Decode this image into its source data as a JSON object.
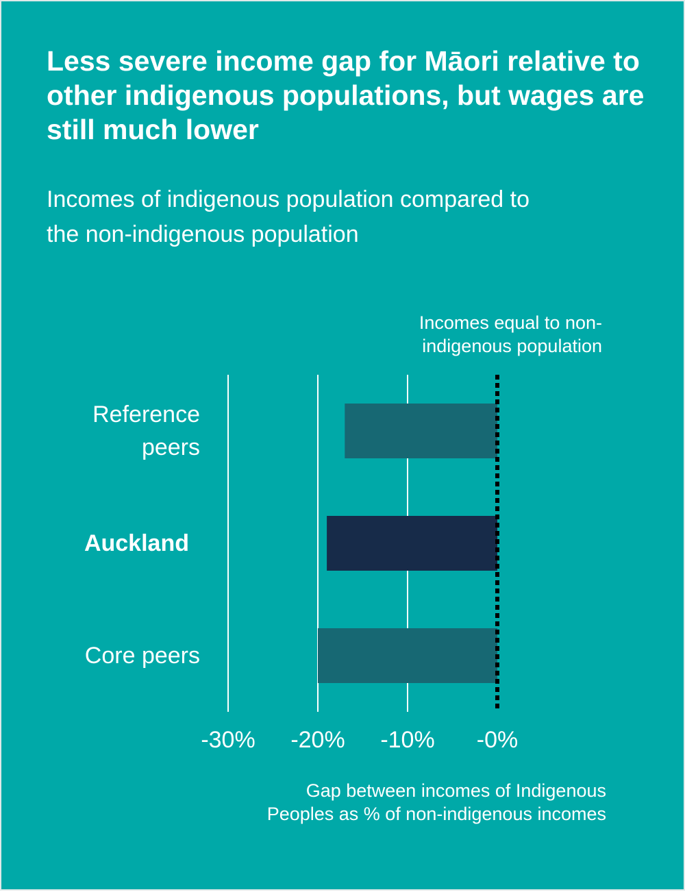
{
  "chart_data": {
    "type": "bar",
    "orientation": "horizontal",
    "title": "Less severe income gap for Māori relative to other indigenous populations, but wages are still much lower",
    "subtitle": "Incomes of indigenous population compared to the non-indigenous population",
    "categories": [
      "Reference peers",
      "Auckland",
      "Core peers"
    ],
    "category_weights": [
      "normal",
      "bold",
      "normal"
    ],
    "values": [
      -17,
      -19,
      -20
    ],
    "colors": [
      "#176873",
      "#172b49",
      "#176873"
    ],
    "xlim": [
      -30,
      0
    ],
    "xticks": [
      {
        "value": -30,
        "label": "-30%"
      },
      {
        "value": -20,
        "label": "-20%"
      },
      {
        "value": -10,
        "label": "-10%"
      },
      {
        "value": 0,
        "label": "-0%"
      }
    ],
    "grid": true,
    "reference_line": 0,
    "annotation": [
      "Incomes equal to non-",
      "indigenous population"
    ],
    "xlabel": [
      "Gap between incomes of Indigenous",
      "Peoples as % of non-indigenous incomes"
    ]
  }
}
